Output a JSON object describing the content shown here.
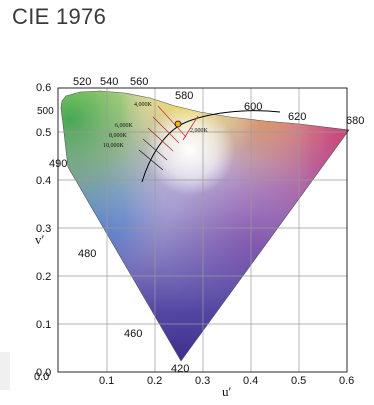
{
  "title": "CIE 1976",
  "axes": {
    "x_label": "u′",
    "y_label": "v′",
    "x_ticks": [
      "0.0",
      "0.1",
      "0.2",
      "0.3",
      "0.4",
      "0.5",
      "0.6"
    ],
    "y_ticks": [
      "0.0",
      "0.1",
      "0.2",
      "0.3",
      "0.4",
      "0.5",
      "0.6"
    ]
  },
  "wavelength_labels": [
    "520",
    "540",
    "560",
    "580",
    "600",
    "620",
    "680",
    "500",
    "490",
    "480",
    "460",
    "420"
  ],
  "cct_labels": [
    "4,000K",
    "6,000K",
    "8,000K",
    "10,000K",
    "2,000K"
  ],
  "colors": {
    "grid": "#9a9a9a",
    "locus": "#000000",
    "marker": "#f2b21a"
  }
}
